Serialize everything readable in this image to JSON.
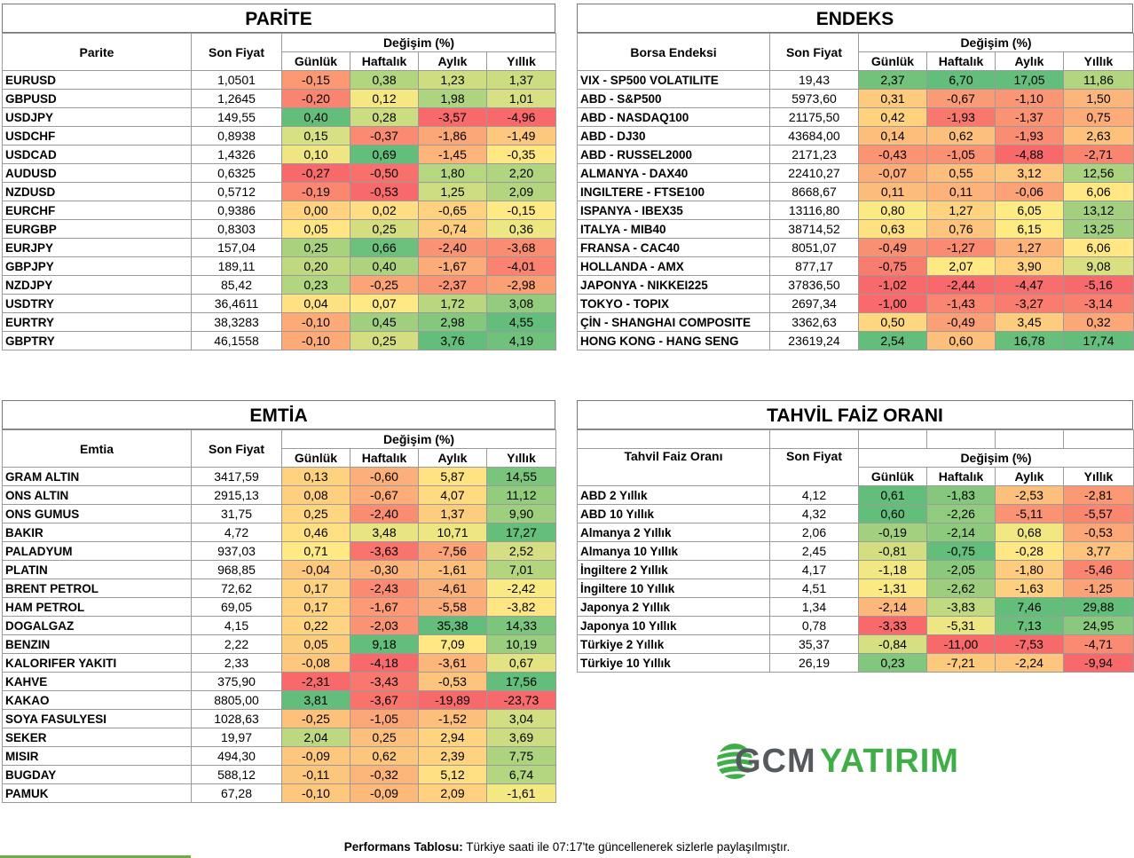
{
  "columns": {
    "last_price": "Son Fiyat",
    "change": "Değişim (%)",
    "daily": "Günlük",
    "weekly": "Haftalık",
    "monthly": "Aylık",
    "yearly": "Yıllık"
  },
  "parite": {
    "title": "PARİTE",
    "name_header": "Parite",
    "rows": [
      {
        "name": "EURUSD",
        "price": "1,0501",
        "d": "-0,15",
        "w": "0,38",
        "m": "1,23",
        "y": "1,37"
      },
      {
        "name": "GBPUSD",
        "price": "1,2645",
        "d": "-0,20",
        "w": "0,12",
        "m": "1,98",
        "y": "1,01"
      },
      {
        "name": "USDJPY",
        "price": "149,55",
        "d": "0,40",
        "w": "0,28",
        "m": "-3,57",
        "y": "-4,96"
      },
      {
        "name": "USDCHF",
        "price": "0,8938",
        "d": "0,15",
        "w": "-0,37",
        "m": "-1,86",
        "y": "-1,49"
      },
      {
        "name": "USDCAD",
        "price": "1,4326",
        "d": "0,10",
        "w": "0,69",
        "m": "-1,45",
        "y": "-0,35"
      },
      {
        "name": "AUDUSD",
        "price": "0,6325",
        "d": "-0,27",
        "w": "-0,50",
        "m": "1,80",
        "y": "2,20"
      },
      {
        "name": "NZDUSD",
        "price": "0,5712",
        "d": "-0,19",
        "w": "-0,53",
        "m": "1,25",
        "y": "2,09"
      },
      {
        "name": "EURCHF",
        "price": "0,9386",
        "d": "0,00",
        "w": "0,02",
        "m": "-0,65",
        "y": "-0,15"
      },
      {
        "name": "EURGBP",
        "price": "0,8303",
        "d": "0,05",
        "w": "0,25",
        "m": "-0,74",
        "y": "0,36"
      },
      {
        "name": "EURJPY",
        "price": "157,04",
        "d": "0,25",
        "w": "0,66",
        "m": "-2,40",
        "y": "-3,68"
      },
      {
        "name": "GBPJPY",
        "price": "189,11",
        "d": "0,20",
        "w": "0,40",
        "m": "-1,67",
        "y": "-4,01"
      },
      {
        "name": "NZDJPY",
        "price": "85,42",
        "d": "0,23",
        "w": "-0,25",
        "m": "-2,37",
        "y": "-2,98"
      },
      {
        "name": "USDTRY",
        "price": "36,4611",
        "d": "0,04",
        "w": "0,07",
        "m": "1,72",
        "y": "3,08"
      },
      {
        "name": "EURTRY",
        "price": "38,3283",
        "d": "-0,10",
        "w": "0,45",
        "m": "2,98",
        "y": "4,55"
      },
      {
        "name": "GBPTRY",
        "price": "46,1558",
        "d": "-0,10",
        "w": "0,25",
        "m": "3,76",
        "y": "4,19"
      }
    ]
  },
  "endeks": {
    "title": "ENDEKS",
    "name_header": "Borsa Endeksi",
    "rows": [
      {
        "name": "VIX  - SP500 VOLATILITE",
        "price": "19,43",
        "d": "2,37",
        "w": "6,70",
        "m": "17,05",
        "y": "11,86"
      },
      {
        "name": "ABD - S&P500",
        "price": "5973,60",
        "d": "0,31",
        "w": "-0,67",
        "m": "-1,10",
        "y": "1,50"
      },
      {
        "name": "ABD - NASDAQ100",
        "price": "21175,50",
        "d": "0,42",
        "w": "-1,93",
        "m": "-1,37",
        "y": "0,75"
      },
      {
        "name": "ABD - DJ30",
        "price": "43684,00",
        "d": "0,14",
        "w": "0,62",
        "m": "-1,93",
        "y": "2,63"
      },
      {
        "name": "ABD - RUSSEL2000",
        "price": "2171,23",
        "d": "-0,43",
        "w": "-1,05",
        "m": "-4,88",
        "y": "-2,71"
      },
      {
        "name": "ALMANYA - DAX40",
        "price": "22410,27",
        "d": "-0,07",
        "w": "0,55",
        "m": "3,12",
        "y": "12,56"
      },
      {
        "name": "INGILTERE - FTSE100",
        "price": "8668,67",
        "d": "0,11",
        "w": "0,11",
        "m": "-0,06",
        "y": "6,06"
      },
      {
        "name": "ISPANYA - IBEX35",
        "price": "13116,80",
        "d": "0,80",
        "w": "1,27",
        "m": "6,05",
        "y": "13,12"
      },
      {
        "name": "ITALYA - MIB40",
        "price": "38714,52",
        "d": "0,63",
        "w": "0,76",
        "m": "6,15",
        "y": "13,25"
      },
      {
        "name": "FRANSA - CAC40",
        "price": "8051,07",
        "d": "-0,49",
        "w": "-1,27",
        "m": "1,27",
        "y": "6,06"
      },
      {
        "name": "HOLLANDA - AMX",
        "price": "877,17",
        "d": "-0,75",
        "w": "2,07",
        "m": "3,90",
        "y": "9,08"
      },
      {
        "name": "JAPONYA - NIKKEI225",
        "price": "37836,50",
        "d": "-1,02",
        "w": "-2,44",
        "m": "-4,47",
        "y": "-5,16"
      },
      {
        "name": "TOKYO - TOPIX",
        "price": "2697,34",
        "d": "-1,00",
        "w": "-1,43",
        "m": "-3,27",
        "y": "-3,14"
      },
      {
        "name": "ÇİN - SHANGHAI COMPOSITE",
        "price": "3362,63",
        "d": "0,50",
        "w": "-0,49",
        "m": "3,45",
        "y": "0,32"
      },
      {
        "name": "HONG KONG - HANG SENG",
        "price": "23619,24",
        "d": "2,54",
        "w": "0,60",
        "m": "16,78",
        "y": "17,74"
      }
    ]
  },
  "emtia": {
    "title": "EMTİA",
    "name_header": "Emtia",
    "rows": [
      {
        "name": "GRAM ALTIN",
        "price": "3417,59",
        "d": "0,13",
        "w": "-0,60",
        "m": "5,87",
        "y": "14,55"
      },
      {
        "name": "ONS ALTIN",
        "price": "2915,13",
        "d": "0,08",
        "w": "-0,67",
        "m": "4,07",
        "y": "11,12"
      },
      {
        "name": "ONS GUMUS",
        "price": "31,75",
        "d": "0,25",
        "w": "-2,40",
        "m": "1,37",
        "y": "9,90"
      },
      {
        "name": "BAKIR",
        "price": "4,72",
        "d": "0,46",
        "w": "3,48",
        "m": "10,71",
        "y": "17,27"
      },
      {
        "name": "PALADYUM",
        "price": "937,03",
        "d": "0,71",
        "w": "-3,63",
        "m": "-7,56",
        "y": "2,52"
      },
      {
        "name": "PLATIN",
        "price": "968,85",
        "d": "-0,04",
        "w": "-0,30",
        "m": "-1,61",
        "y": "7,01"
      },
      {
        "name": "BRENT PETROL",
        "price": "72,62",
        "d": "0,17",
        "w": "-2,43",
        "m": "-4,61",
        "y": "-2,42"
      },
      {
        "name": "HAM PETROL",
        "price": "69,05",
        "d": "0,17",
        "w": "-1,67",
        "m": "-5,58",
        "y": "-3,82"
      },
      {
        "name": "DOGALGAZ",
        "price": "4,15",
        "d": "0,22",
        "w": "-2,03",
        "m": "35,38",
        "y": "14,33"
      },
      {
        "name": "BENZIN",
        "price": "2,22",
        "d": "0,05",
        "w": "9,18",
        "m": "7,09",
        "y": "10,19"
      },
      {
        "name": "KALORIFER YAKITI",
        "price": "2,33",
        "d": "-0,08",
        "w": "-4,18",
        "m": "-3,61",
        "y": "0,67"
      },
      {
        "name": "KAHVE",
        "price": "375,90",
        "d": "-2,31",
        "w": "-3,43",
        "m": "-0,53",
        "y": "17,56"
      },
      {
        "name": "KAKAO",
        "price": "8805,00",
        "d": "3,81",
        "w": "-3,67",
        "m": "-19,89",
        "y": "-23,73"
      },
      {
        "name": "SOYA FASULYESI",
        "price": "1028,63",
        "d": "-0,25",
        "w": "-1,05",
        "m": "-1,52",
        "y": "3,04"
      },
      {
        "name": "SEKER",
        "price": "19,97",
        "d": "2,04",
        "w": "0,25",
        "m": "2,94",
        "y": "3,69"
      },
      {
        "name": "MISIR",
        "price": "494,30",
        "d": "-0,09",
        "w": "0,62",
        "m": "2,39",
        "y": "7,75"
      },
      {
        "name": "BUGDAY",
        "price": "588,12",
        "d": "-0,11",
        "w": "-0,32",
        "m": "5,12",
        "y": "6,74"
      },
      {
        "name": "PAMUK",
        "price": "67,28",
        "d": "-0,10",
        "w": "-0,09",
        "m": "2,09",
        "y": "-1,61"
      }
    ]
  },
  "tahvil": {
    "title": "TAHVİL FAİZ ORANI",
    "name_header": "Tahvil Faiz Oranı",
    "rows": [
      {
        "name": "ABD 2 Yıllık",
        "price": "4,12",
        "d": "0,61",
        "w": "-1,83",
        "m": "-2,53",
        "y": "-2,81"
      },
      {
        "name": "ABD 10 Yıllık",
        "price": "4,32",
        "d": "0,60",
        "w": "-2,26",
        "m": "-5,11",
        "y": "-5,57"
      },
      {
        "name": "Almanya 2 Yıllık",
        "price": "2,06",
        "d": "-0,19",
        "w": "-2,14",
        "m": "0,68",
        "y": "-0,53"
      },
      {
        "name": "Almanya 10 Yıllık",
        "price": "2,45",
        "d": "-0,81",
        "w": "-0,75",
        "m": "-0,28",
        "y": "3,77"
      },
      {
        "name": "İngiltere 2 Yıllık",
        "price": "4,17",
        "d": "-1,18",
        "w": "-2,05",
        "m": "-1,80",
        "y": "-5,46"
      },
      {
        "name": "İngiltere 10 Yıllık",
        "price": "4,51",
        "d": "-1,31",
        "w": "-2,62",
        "m": "-1,63",
        "y": "-1,25"
      },
      {
        "name": "Japonya 2 Yıllık",
        "price": "1,34",
        "d": "-2,14",
        "w": "-3,83",
        "m": "7,46",
        "y": "29,88"
      },
      {
        "name": "Japonya 10 Yıllık",
        "price": "0,78",
        "d": "-3,33",
        "w": "-5,31",
        "m": "7,13",
        "y": "24,95"
      },
      {
        "name": "Türkiye 2 Yıllık",
        "price": "35,37",
        "d": "-0,84",
        "w": "-11,00",
        "m": "-7,53",
        "y": "-4,71"
      },
      {
        "name": "Türkiye 10 Yıllık",
        "price": "26,19",
        "d": "0,23",
        "w": "-7,21",
        "m": "-2,24",
        "y": "-9,94"
      }
    ]
  },
  "logo": {
    "part1": "GCM",
    "part2": "YATIRIM",
    "color1": "#555a5f",
    "color2": "#3fae49"
  },
  "footer": {
    "bold": "Performans Tablosu:",
    "text": " Türkiye saati ile 07:17'te güncellenerek sizlerle paylaşılmıştır."
  }
}
